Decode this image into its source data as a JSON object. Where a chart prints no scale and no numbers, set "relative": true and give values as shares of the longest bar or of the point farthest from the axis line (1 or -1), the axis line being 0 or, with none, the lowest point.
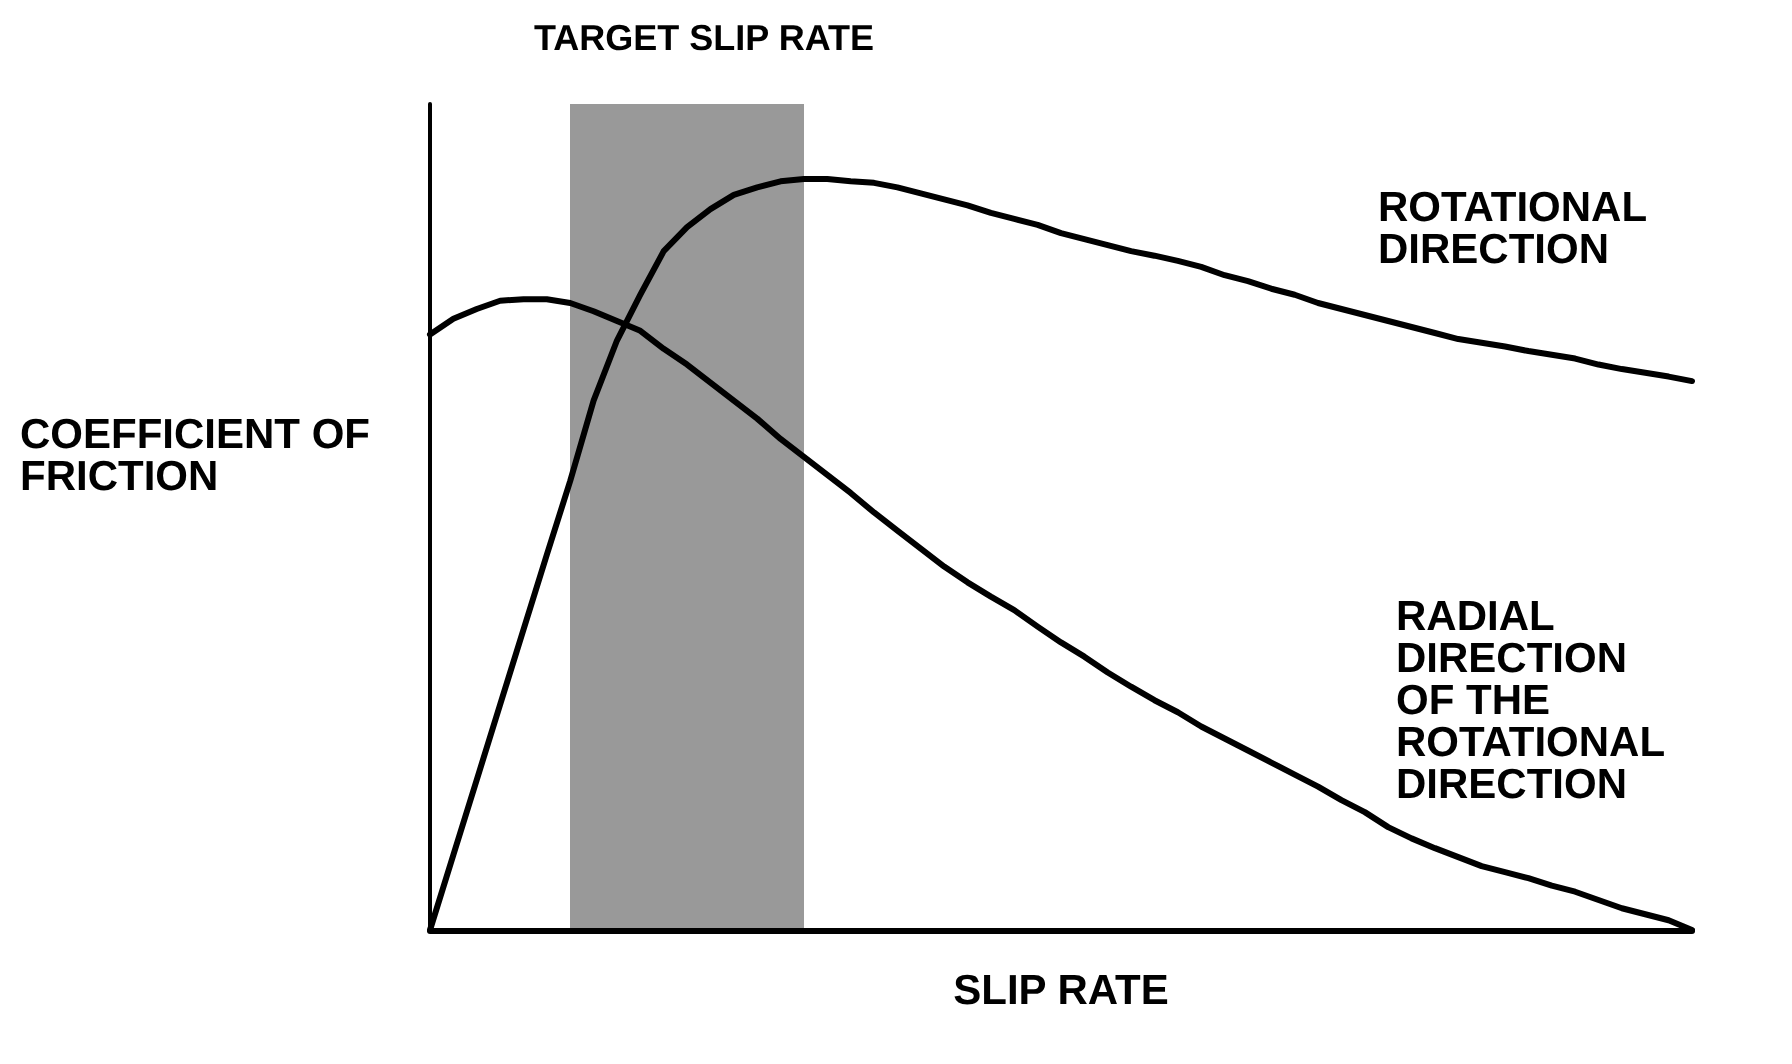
{
  "chart_data": {
    "type": "line",
    "relative": true,
    "xlabel": "SLIP RATE",
    "ylabel": "COEFFICIENT OF FRICTION",
    "annotations": [
      "TARGET SLIP RATE"
    ],
    "categories": [
      null,
      null,
      null,
      null,
      null,
      null,
      null,
      null,
      null,
      null,
      null,
      null,
      null,
      null,
      null,
      null,
      null,
      null,
      null,
      null,
      null,
      null,
      null,
      null,
      null,
      null,
      null,
      null,
      null,
      null,
      null,
      null,
      null,
      null,
      null,
      null,
      null,
      null,
      null,
      null,
      null,
      null,
      null,
      null,
      null,
      null,
      null,
      null,
      null,
      null,
      null,
      null,
      null,
      null,
      null
    ],
    "series": [
      {
        "name": "ROTATIONAL DIRECTION",
        "color": "#000000",
        "values": [
          0,
          0.1,
          0.2,
          0.3,
          0.4,
          0.5,
          0.598,
          0.705,
          0.785,
          0.846,
          0.904,
          0.936,
          0.96,
          0.979,
          0.989,
          0.997,
          1,
          1,
          0.997,
          0.995,
          0.989,
          0.981,
          0.973,
          0.965,
          0.955,
          0.947,
          0.939,
          0.928,
          0.92,
          0.912,
          0.904,
          0.898,
          0.891,
          0.883,
          0.872,
          0.864,
          0.854,
          0.846,
          0.835,
          0.827,
          0.819,
          0.811,
          0.803,
          0.795,
          0.787,
          0.782,
          0.777,
          0.771,
          0.766,
          0.761,
          0.753,
          0.747,
          0.742,
          0.737,
          0.731
        ]
      },
      {
        "name": "RADIAL DIRECTION OF THE ROTATIONAL DIRECTION",
        "color": "#000000",
        "values": [
          0.793,
          0.814,
          0.827,
          0.838,
          0.84,
          0.84,
          0.835,
          0.824,
          0.811,
          0.798,
          0.774,
          0.753,
          0.729,
          0.705,
          0.681,
          0.654,
          0.63,
          0.606,
          0.582,
          0.556,
          0.532,
          0.508,
          0.484,
          0.463,
          0.444,
          0.426,
          0.404,
          0.383,
          0.364,
          0.343,
          0.324,
          0.306,
          0.29,
          0.271,
          0.255,
          0.239,
          0.223,
          0.207,
          0.191,
          0.173,
          0.157,
          0.137,
          0.122,
          0.109,
          0.097,
          0.085,
          0.077,
          0.069,
          0.059,
          0.051,
          0.04,
          0.029,
          0.021,
          0.013,
          0
        ]
      }
    ],
    "legend": false,
    "grid": false,
    "marker": "none",
    "line_style": "solid"
  }
}
